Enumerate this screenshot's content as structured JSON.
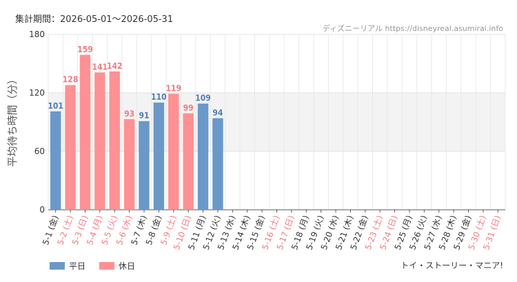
{
  "header": {
    "period": "集計期間：2026-05-01～2026-05-31",
    "credit": "ディズニーリアル https://disneyreal.asumirai.info"
  },
  "footer": {
    "title": "トイ・ストーリー・マニア!"
  },
  "legend": {
    "weekday": "平日",
    "holiday": "休日"
  },
  "colors": {
    "weekday": "#6a98c9",
    "holiday": "#ff9093",
    "holiday_label": "#f07b80",
    "weekday_label": "#4f7fb5",
    "band": "#f3f3f3"
  },
  "chart_data": {
    "type": "bar",
    "ylabel": "平均待ち時間（分）",
    "ylim": [
      0,
      180
    ],
    "yticks": [
      0,
      60,
      120,
      180
    ],
    "grid": true,
    "legend_position": "bottom-left",
    "categories": [
      "5-1 (金)",
      "5-2 (土)",
      "5-3 (日)",
      "5-4 (月)",
      "5-5 (火)",
      "5-6 (水)",
      "5-7 (木)",
      "5-8 (金)",
      "5-9 (土)",
      "5-10 (日)",
      "5-11 (月)",
      "5-12 (火)",
      "5-13 (水)",
      "5-14 (木)",
      "5-15 (金)",
      "5-16 (土)",
      "5-17 (日)",
      "5-18 (月)",
      "5-19 (火)",
      "5-20 (水)",
      "5-21 (木)",
      "5-22 (金)",
      "5-23 (土)",
      "5-24 (日)",
      "5-25 (月)",
      "5-26 (火)",
      "5-27 (水)",
      "5-28 (木)",
      "5-29 (金)",
      "5-30 (土)",
      "5-31 (日)"
    ],
    "day_type": [
      "weekday",
      "holiday",
      "holiday",
      "holiday",
      "holiday",
      "holiday",
      "weekday",
      "weekday",
      "holiday",
      "holiday",
      "weekday",
      "weekday",
      "weekday",
      "weekday",
      "weekday",
      "holiday",
      "holiday",
      "weekday",
      "weekday",
      "weekday",
      "weekday",
      "weekday",
      "holiday",
      "holiday",
      "weekday",
      "weekday",
      "weekday",
      "weekday",
      "weekday",
      "holiday",
      "holiday"
    ],
    "values": [
      101,
      128,
      159,
      141,
      142,
      93,
      91,
      110,
      119,
      99,
      109,
      94,
      null,
      null,
      null,
      null,
      null,
      null,
      null,
      null,
      null,
      null,
      null,
      null,
      null,
      null,
      null,
      null,
      null,
      null,
      null
    ]
  }
}
